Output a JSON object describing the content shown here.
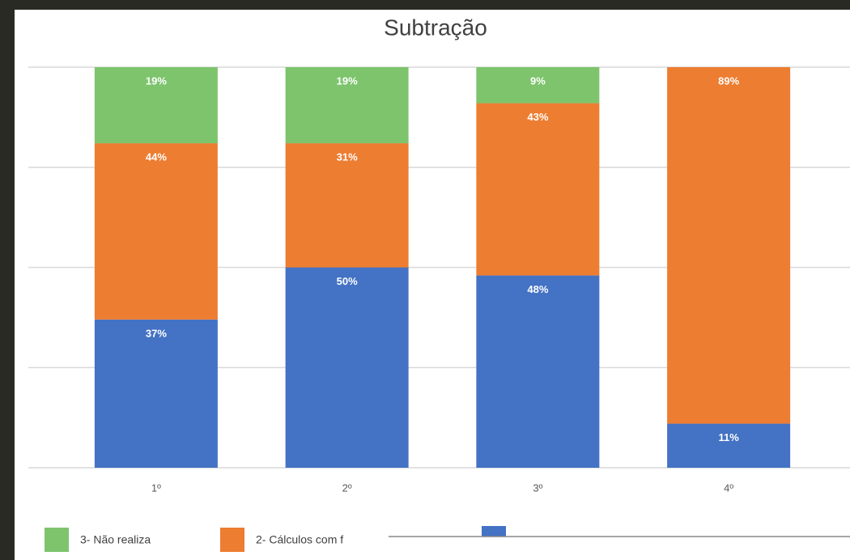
{
  "chart_data": {
    "type": "stacked_bar",
    "title": "Subtração",
    "categories": [
      "1º",
      "2º",
      "3º",
      "4º"
    ],
    "series": [
      {
        "name": "3- Não realiza",
        "color": "#7dc46c",
        "values": [
          19,
          19,
          9,
          0
        ],
        "value_labels": [
          "19%",
          "19%",
          "9%",
          null
        ]
      },
      {
        "name": "2- Cálculos com f",
        "color": "#ed7d31",
        "values": [
          44,
          31,
          43,
          89
        ],
        "value_labels": [
          "44%",
          "31%",
          "43%",
          "89%"
        ]
      },
      {
        "name": null,
        "color": "#4472c4",
        "values": [
          37,
          50,
          48,
          11
        ],
        "value_labels": [
          "37%",
          "50%",
          "48%",
          "11%"
        ]
      }
    ],
    "ylim": [
      0,
      100
    ],
    "yticks": [
      0,
      25,
      50,
      75,
      100
    ],
    "grid": true
  }
}
